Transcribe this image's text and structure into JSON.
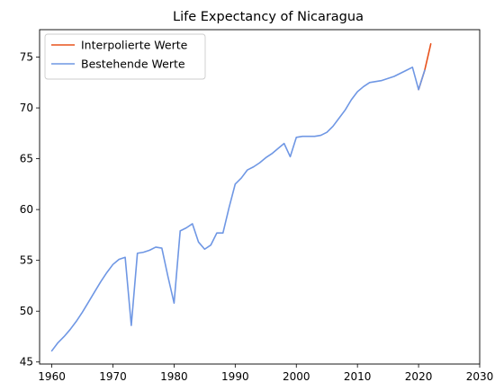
{
  "chart_data": {
    "type": "line",
    "title": "Life Expectancy of Nicaragua",
    "xlabel": "",
    "ylabel": "",
    "xlim": [
      1958,
      2030
    ],
    "ylim": [
      44.8,
      77.7
    ],
    "x_ticks": [
      1960,
      1970,
      1980,
      1990,
      2000,
      2010,
      2020,
      2030
    ],
    "y_ticks": [
      45,
      50,
      55,
      60,
      65,
      70,
      75
    ],
    "grid": false,
    "legend_position": "top-left",
    "series": [
      {
        "name": "Interpolierte Werte",
        "color": "#e8521c",
        "x": [
          2020,
          2021,
          2022
        ],
        "y": [
          71.8,
          73.7,
          76.3
        ]
      },
      {
        "name": "Bestehende Werte",
        "color": "#6f97e4",
        "x": [
          1960,
          1961,
          1962,
          1963,
          1964,
          1965,
          1966,
          1967,
          1968,
          1969,
          1970,
          1971,
          1972,
          1973,
          1974,
          1975,
          1976,
          1977,
          1978,
          1979,
          1980,
          1981,
          1982,
          1983,
          1984,
          1985,
          1986,
          1987,
          1988,
          1989,
          1990,
          1991,
          1992,
          1993,
          1994,
          1995,
          1996,
          1997,
          1998,
          1999,
          2000,
          2001,
          2002,
          2003,
          2004,
          2005,
          2006,
          2007,
          2008,
          2009,
          2010,
          2011,
          2012,
          2013,
          2014,
          2015,
          2016,
          2017,
          2018,
          2019,
          2020,
          2021
        ],
        "y": [
          46.1,
          46.9,
          47.5,
          48.2,
          49.0,
          49.9,
          50.9,
          51.9,
          52.9,
          53.8,
          54.6,
          55.1,
          55.3,
          48.6,
          55.7,
          55.8,
          56.0,
          56.3,
          56.2,
          53.4,
          50.8,
          57.9,
          58.2,
          58.6,
          56.8,
          56.1,
          56.5,
          57.7,
          57.7,
          60.2,
          62.5,
          63.1,
          63.9,
          64.2,
          64.6,
          65.1,
          65.5,
          66.0,
          66.5,
          65.2,
          67.1,
          67.2,
          67.2,
          67.2,
          67.3,
          67.6,
          68.2,
          69.0,
          69.8,
          70.8,
          71.6,
          72.1,
          72.5,
          72.6,
          72.7,
          72.9,
          73.1,
          73.4,
          73.7,
          74.0,
          71.8,
          73.7
        ]
      }
    ]
  }
}
